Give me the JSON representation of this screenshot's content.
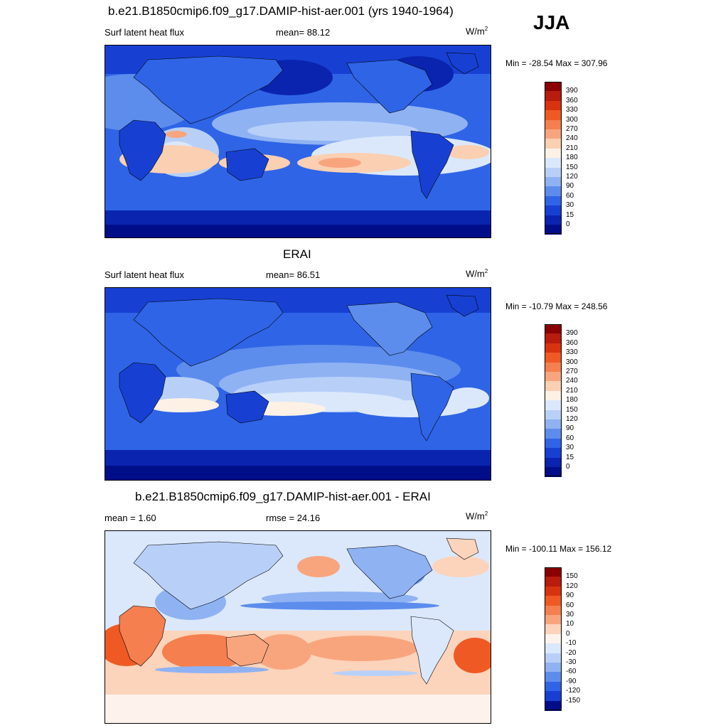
{
  "season": "JJA",
  "panels": [
    {
      "title": "b.e21.B1850cmip6.f09_g17.DAMIP-hist-aer.001 (yrs 1940-1964)",
      "left_label": "Surf latent heat flux",
      "center_label": "mean=  88.12",
      "units_base": "W/m",
      "units_exp": "2",
      "minmax": "Min = -28.54 Max = 307.96"
    },
    {
      "title": "ERAI",
      "left_label": "Surf latent heat flux",
      "center_label": "mean=  86.51",
      "units_base": "W/m",
      "units_exp": "2",
      "minmax": "Min = -10.79 Max = 248.56"
    },
    {
      "title": "b.e21.B1850cmip6.f09_g17.DAMIP-hist-aer.001 - ERAI",
      "left_label": "mean =   1.60",
      "center_label": "rmse =  24.16",
      "units_base": "W/m",
      "units_exp": "2",
      "minmax": "Min = -100.11 Max = 156.12"
    }
  ],
  "colorbars": {
    "abs": {
      "labels": [
        "390",
        "360",
        "330",
        "300",
        "270",
        "240",
        "210",
        "180",
        "150",
        "120",
        "90",
        "60",
        "30",
        "15",
        "0"
      ],
      "colors": [
        "#8b0000",
        "#b71c0c",
        "#d8330f",
        "#ef5a24",
        "#f57f4e",
        "#f8a57e",
        "#fbcfb2",
        "#fdf1e6",
        "#dbe8fb",
        "#b8d0f8",
        "#8fb2f3",
        "#5c8ded",
        "#2f64e6",
        "#1740d3",
        "#0a24b0",
        "#000e8a"
      ]
    },
    "diff": {
      "labels": [
        "150",
        "120",
        "90",
        "60",
        "30",
        "10",
        "0",
        "-10",
        "-20",
        "-30",
        "-60",
        "-90",
        "-120",
        "-150"
      ],
      "colors": [
        "#8b0000",
        "#b71c0c",
        "#d8330f",
        "#ef5a24",
        "#f57f4e",
        "#f8a57e",
        "#fcd3bb",
        "#fdf3ec",
        "#dbe8fb",
        "#b8d0f8",
        "#8fb2f3",
        "#5c8ded",
        "#2f64e6",
        "#1740d3",
        "#000e8a"
      ]
    }
  },
  "chart_data": [
    {
      "type": "heatmap",
      "title": "b.e21.B1850cmip6.f09_g17.DAMIP-hist-aer.001 (yrs 1940-1964)",
      "variable": "Surf latent heat flux",
      "units": "W/m2",
      "season": "JJA",
      "mean": 88.12,
      "min": -28.54,
      "max": 307.96,
      "contour_levels": [
        0,
        15,
        30,
        60,
        90,
        120,
        150,
        180,
        210,
        240,
        270,
        300,
        330,
        360,
        390
      ]
    },
    {
      "type": "heatmap",
      "title": "ERAI",
      "variable": "Surf latent heat flux",
      "units": "W/m2",
      "season": "JJA",
      "mean": 86.51,
      "min": -10.79,
      "max": 248.56,
      "contour_levels": [
        0,
        15,
        30,
        60,
        90,
        120,
        150,
        180,
        210,
        240,
        270,
        300,
        330,
        360,
        390
      ]
    },
    {
      "type": "heatmap",
      "title": "b.e21.B1850cmip6.f09_g17.DAMIP-hist-aer.001 - ERAI",
      "units": "W/m2",
      "season": "JJA",
      "mean": 1.6,
      "rmse": 24.16,
      "min": -100.11,
      "max": 156.12,
      "contour_levels": [
        -150,
        -120,
        -90,
        -60,
        -30,
        -20,
        -10,
        0,
        10,
        30,
        60,
        90,
        120,
        150
      ]
    }
  ]
}
